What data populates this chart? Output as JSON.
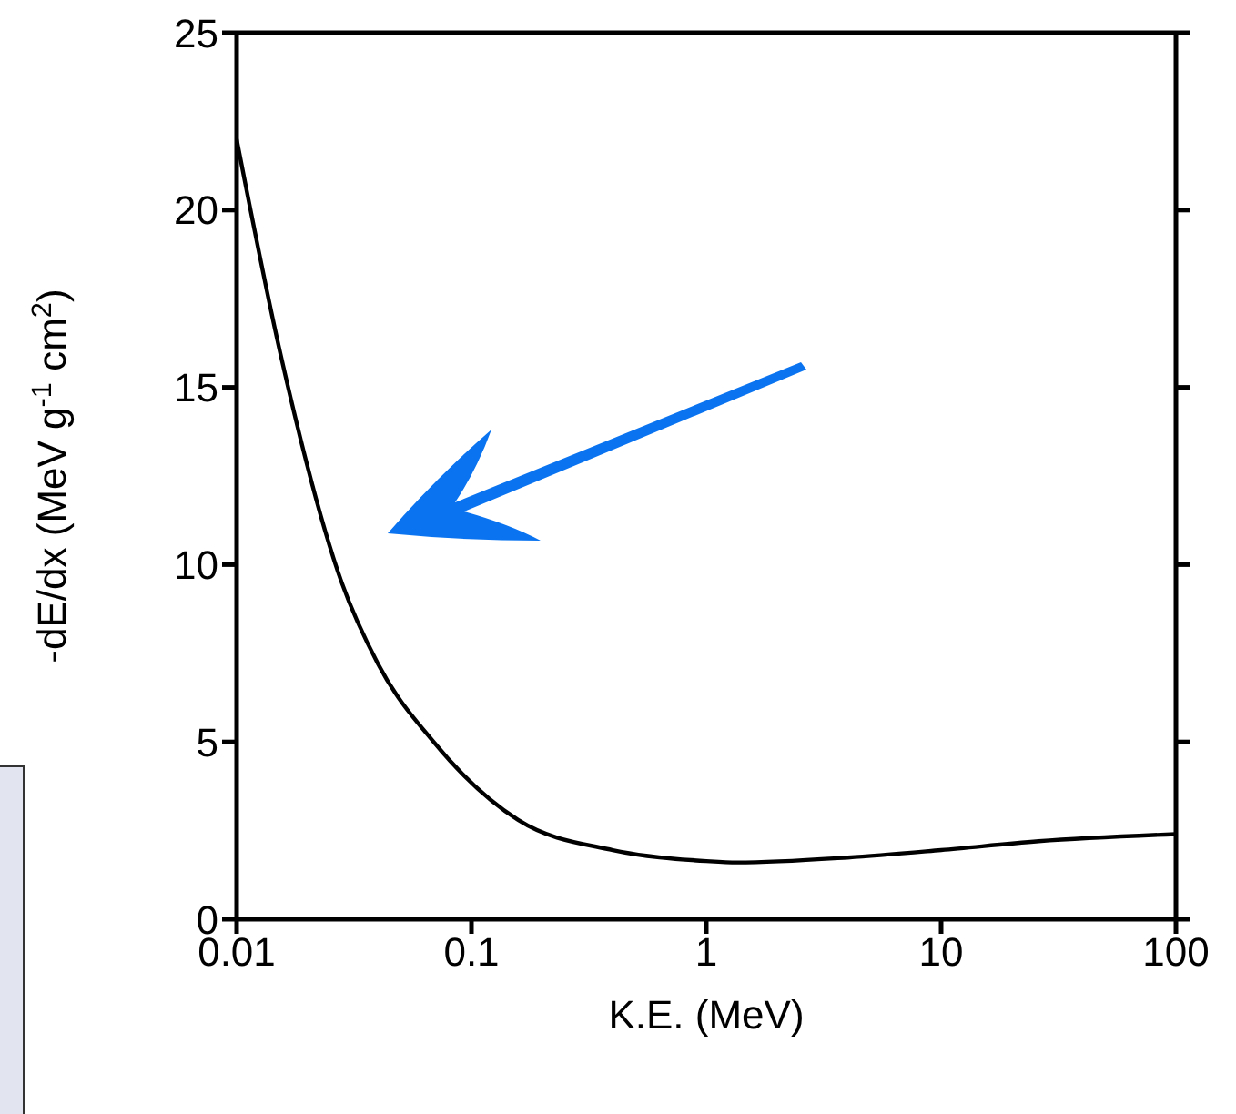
{
  "chart_data": {
    "type": "line",
    "xlabel": "K.E. (MeV)",
    "ylabel": "-dE/dx (MeV g$^{-1}$ cm$^{2}$)",
    "log": "x",
    "xlim": [
      0.01,
      100
    ],
    "xticks": [
      0.01,
      0.1,
      1,
      10,
      100
    ],
    "ylim": [
      0,
      25
    ],
    "yticks": [
      0,
      5,
      10,
      15,
      20,
      25
    ],
    "marker": "none",
    "line_style": "solid",
    "series": [
      {
        "color": "#000000",
        "x": [
          0.01,
          0.0153,
          0.028,
          0.04,
          0.069,
          0.158,
          0.4,
          1,
          1.35,
          4,
          10,
          26,
          100
        ],
        "values": [
          22.0,
          16.0,
          9.5,
          7.2,
          5.0,
          2.8,
          1.95,
          1.64,
          1.6,
          1.74,
          1.95,
          2.2,
          2.4
        ]
      }
    ]
  }
}
